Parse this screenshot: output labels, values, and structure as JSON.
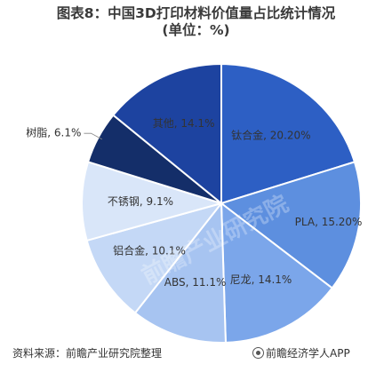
{
  "title_line1": "图表8：中国3D打印材料价值量占比统计情况",
  "title_line2": "(单位：%)",
  "source": "资料来源：前瞻产业研究院整理",
  "brand": "前瞻经济学人APP",
  "watermark": "前瞻产业研究院",
  "chart_data": {
    "type": "pie",
    "title": "图表8：中国3D打印材料价值量占比统计情况",
    "subtitle": "(单位：%)",
    "slices": [
      {
        "label": "钛合金, 20.20%",
        "name": "钛合金",
        "value": 20.2,
        "color": "#2d5fc4"
      },
      {
        "label": "PLA, 15.20%",
        "name": "PLA",
        "value": 15.2,
        "color": "#5d8fdf"
      },
      {
        "label": "尼龙, 14.1%",
        "name": "尼龙",
        "value": 14.1,
        "color": "#7ba6ea"
      },
      {
        "label": "ABS, 11.1%",
        "name": "ABS",
        "value": 11.1,
        "color": "#a7c4f1"
      },
      {
        "label": "铝合金, 10.1%",
        "name": "铝合金",
        "value": 10.1,
        "color": "#c4d8f6"
      },
      {
        "label": "不锈钢, 9.1%",
        "name": "不锈钢",
        "value": 9.1,
        "color": "#d9e6f9"
      },
      {
        "label": "树脂, 6.1%",
        "name": "树脂",
        "value": 6.1,
        "color": "#142e69"
      },
      {
        "label": "其他, 14.1%",
        "name": "其他",
        "value": 14.1,
        "color": "#1d43a0"
      }
    ]
  }
}
